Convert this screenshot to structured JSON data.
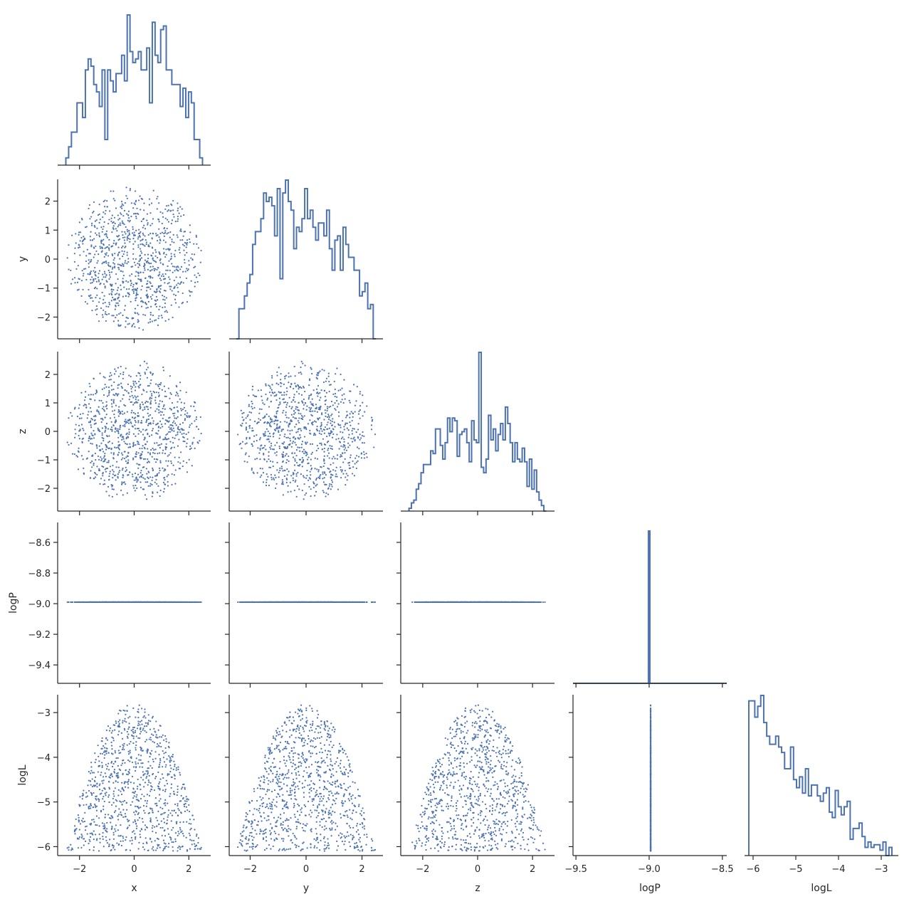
{
  "chart_data": {
    "type": "pairplot",
    "corner": true,
    "variables": [
      "x",
      "y",
      "z",
      "logP",
      "logL"
    ],
    "n_samples": 1000,
    "axis_ranges": {
      "x": [
        -2.8,
        2.8
      ],
      "y": [
        -2.75,
        2.75
      ],
      "z": [
        -2.8,
        2.8
      ],
      "logP": [
        -9.52,
        -8.47
      ],
      "logL": [
        -6.2,
        -2.6
      ]
    },
    "ticks": {
      "x": {
        "values": [
          -2,
          0,
          2
        ],
        "labels": [
          "−2",
          "0",
          "2"
        ]
      },
      "y": {
        "values": [
          -2,
          -1,
          0,
          1,
          2
        ],
        "labels": [
          "−2",
          "−1",
          "0",
          "1",
          "2"
        ]
      },
      "y_bottom": {
        "values": [
          -2,
          0,
          2
        ],
        "labels": [
          "−2",
          "0",
          "2"
        ]
      },
      "z": {
        "values": [
          -2,
          -1,
          0,
          1,
          2
        ],
        "labels": [
          "−2",
          "−1",
          "0",
          "1",
          "2"
        ]
      },
      "z_bottom": {
        "values": [
          -2,
          0,
          2
        ],
        "labels": [
          "−2",
          "0",
          "2"
        ]
      },
      "logP_row": {
        "values": [
          -9.4,
          -9.2,
          -9.0,
          -8.8,
          -8.6
        ],
        "labels": [
          "−9.4",
          "−9.2",
          "−9.0",
          "−8.8",
          "−8.6"
        ]
      },
      "logP_bottom": {
        "values": [
          -9.5,
          -9.0,
          -8.5
        ],
        "labels": [
          "−9.5",
          "−9.0",
          "−8.5"
        ]
      },
      "logL": {
        "values": [
          -6,
          -5,
          -4,
          -3
        ],
        "labels": [
          "−6",
          "−5",
          "−4",
          "−3"
        ]
      }
    },
    "histograms": {
      "x": {
        "edges": [
          -2.5,
          2.5
        ],
        "counts": [
          2,
          5,
          9,
          9,
          17,
          17,
          13,
          26,
          29,
          27,
          22,
          20,
          16,
          26,
          7,
          26,
          23,
          20,
          25,
          25,
          30,
          23,
          41,
          31,
          28,
          29,
          31,
          26,
          26,
          32,
          17,
          39,
          30,
          28,
          37,
          38,
          26,
          26,
          22,
          22,
          22,
          16,
          21,
          13,
          20,
          17,
          7,
          7,
          2
        ]
      },
      "y": {
        "edges": [
          -2.5,
          2.5
        ],
        "counts": [
          0,
          7,
          7,
          10,
          13,
          15,
          22,
          25,
          25,
          28,
          34,
          32,
          33,
          31,
          24,
          35,
          14,
          34,
          37,
          32,
          30,
          21,
          26,
          25,
          28,
          35,
          28,
          30,
          26,
          23,
          27,
          27,
          24,
          30,
          21,
          16,
          23,
          24,
          16,
          26,
          22,
          19,
          19,
          16,
          16,
          10,
          11,
          13,
          7,
          8,
          0
        ]
      },
      "z": {
        "edges": [
          -2.5,
          2.5
        ],
        "counts": [
          1,
          3,
          4,
          8,
          10,
          14,
          17,
          17,
          17,
          22,
          21,
          30,
          30,
          24,
          19,
          25,
          34,
          29,
          34,
          33,
          20,
          28,
          29,
          30,
          25,
          18,
          33,
          26,
          25,
          58,
          16,
          14,
          19,
          35,
          26,
          30,
          22,
          28,
          32,
          26,
          38,
          32,
          25,
          18,
          25,
          19,
          18,
          23,
          18,
          9,
          19,
          8,
          15,
          7,
          4,
          2,
          0
        ]
      },
      "logP": {
        "edges": [
          -9.52,
          -8.47
        ],
        "peak_at": -9.0,
        "peak_count": 1000
      },
      "logL": {
        "edges": [
          -6.1,
          -2.75
        ],
        "counts": [
          57,
          57,
          51,
          55,
          59,
          49,
          44,
          41,
          41,
          44,
          40,
          38,
          32,
          32,
          40,
          28,
          25,
          29,
          23,
          32,
          22,
          26,
          26,
          22,
          20,
          23,
          25,
          16,
          14,
          24,
          18,
          15,
          18,
          20,
          6,
          10,
          10,
          12,
          7,
          3,
          5,
          3,
          4,
          4,
          2,
          5,
          0,
          3
        ]
      }
    },
    "logP_value": -8.99,
    "scatter_style": {
      "color": "#4c72b0",
      "marker_size": 2
    },
    "grid": false,
    "legend": "none"
  }
}
